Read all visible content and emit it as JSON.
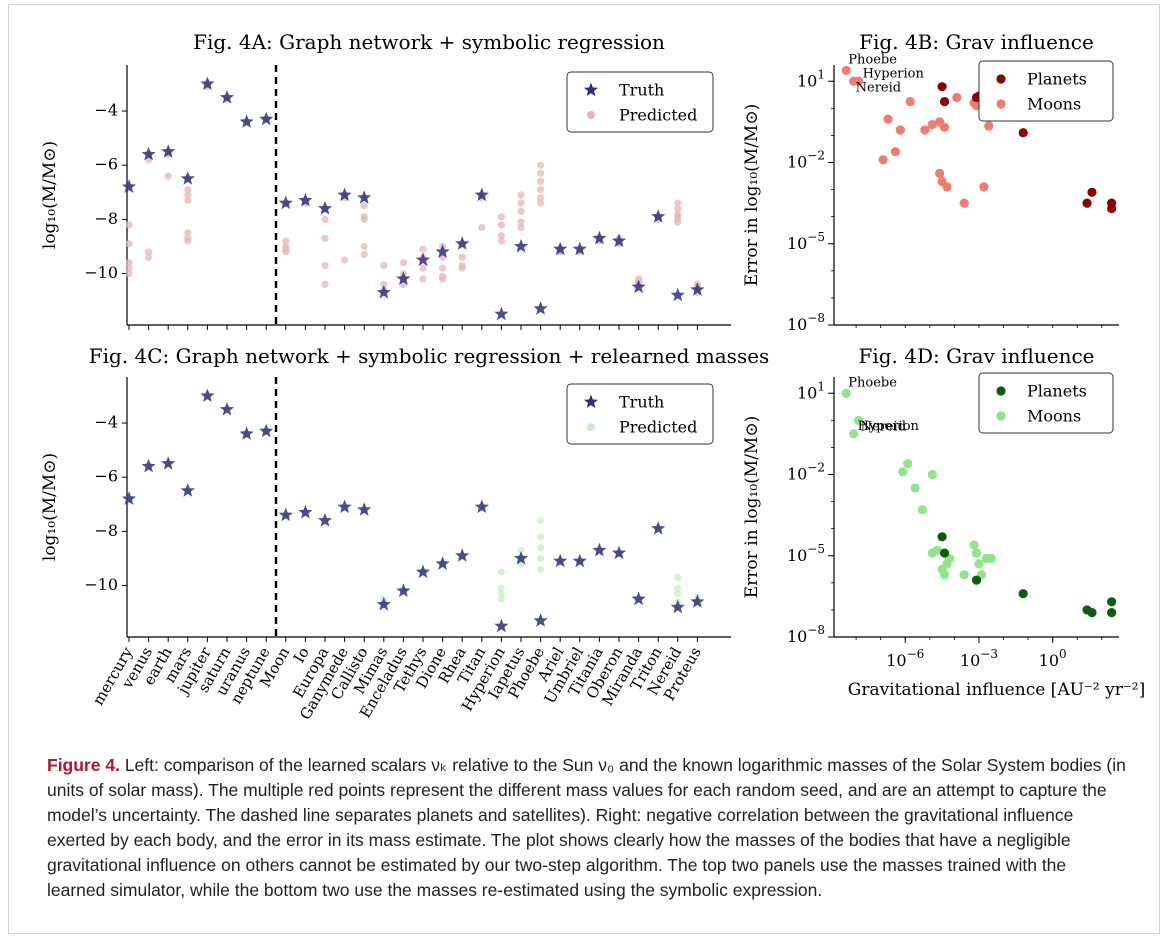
{
  "caption": {
    "label": "Figure 4.",
    "text": "Left: comparison of the learned scalars νₖ relative to the Sun ν₀ and the known logarithmic masses of the Solar System bodies (in units of solar mass). The multiple red points represent the different mass values for each random seed, and are an attempt to capture the model’s uncertainty. The dashed line separates planets and satellites). Right: negative correlation between the gravitational influence exerted by each body, and the error in its mass estimate. The plot shows clearly how the masses of the bodies that have a negligible gravitational influence on others cannot be estimated by our two-step algorithm. The top two panels use the masses trained with the learned simulator, while the bottom two use the masses re-estimated using the symbolic expression."
  },
  "chart_data": [
    {
      "id": "4A",
      "type": "scatter",
      "title": "Fig. 4A: Graph network + symbolic regression",
      "ylabel": "log₁₀(M/M⊙)",
      "ylim": [
        -11.9,
        -2.3
      ],
      "yticks": [
        -4,
        -6,
        -8,
        -10
      ],
      "categories": [
        "mercury",
        "venus",
        "earth",
        "mars",
        "jupiter",
        "saturn",
        "uranus",
        "neptune",
        "Moon",
        "Io",
        "Europa",
        "Ganymede",
        "Callisto",
        "Mimas",
        "Enceladus",
        "Tethys",
        "Dione",
        "Rhea",
        "Titan",
        "Hyperion",
        "Iapetus",
        "Phoebe",
        "Ariel",
        "Umbriel",
        "Titania",
        "Oberon",
        "Miranda",
        "Triton",
        "Nereid",
        "Proteus"
      ],
      "divider_after": 8,
      "colors": {
        "truth": "#2c2f80",
        "predicted": "#e8b4b8"
      },
      "legend": {
        "position": "top-right",
        "truth": "Truth",
        "predicted": "Predicted"
      },
      "truth": [
        -6.8,
        -5.6,
        -5.5,
        -6.5,
        -3.0,
        -3.5,
        -4.4,
        -4.3,
        -7.4,
        -7.3,
        -7.6,
        -7.1,
        -7.2,
        -10.7,
        -10.2,
        -9.5,
        -9.2,
        -8.9,
        -7.1,
        -11.5,
        -9.0,
        -11.3,
        -9.1,
        -9.1,
        -8.7,
        -8.8,
        -10.5,
        -7.9,
        -10.8,
        -10.6
      ],
      "predicted": [
        [
          -6.8,
          -8.2,
          -8.9,
          -9.6,
          -9.8,
          -10.0
        ],
        [
          -5.6,
          -5.8,
          -9.2,
          -9.4
        ],
        [
          -5.5,
          -5.6,
          -6.4
        ],
        [
          -6.5,
          -6.9,
          -7.1,
          -7.3,
          -8.5,
          -8.7,
          -8.8
        ],
        [
          -3.0,
          -3.1
        ],
        [
          -3.5
        ],
        [
          -4.4
        ],
        [
          -4.3
        ],
        [
          -7.4,
          -8.8,
          -9.0,
          -9.1,
          -9.2
        ],
        [
          -7.3,
          -7.4
        ],
        [
          -7.6,
          -8.0,
          -8.7,
          -9.7,
          -10.4
        ],
        [
          -7.1,
          -7.2,
          -9.5
        ],
        [
          -7.2,
          -7.5,
          -7.9,
          -8.0,
          -9.0,
          -9.3
        ],
        [
          -9.7,
          -10.4,
          -10.6
        ],
        [
          -9.6,
          -10.0,
          -10.2,
          -10.4
        ],
        [
          -9.1,
          -9.4,
          -9.8,
          -10.2
        ],
        [
          -9.0,
          -9.4,
          -9.8,
          -10.1,
          -10.2
        ],
        [
          -8.9,
          -9.4,
          -9.7,
          -9.8
        ],
        [
          -7.1,
          -7.2,
          -8.3
        ],
        [
          -7.9,
          -8.2,
          -8.6,
          -8.8
        ],
        [
          -7.1,
          -7.4,
          -7.7,
          -8.1,
          -8.3
        ],
        [
          -6.0,
          -6.3,
          -6.6,
          -6.9,
          -7.2,
          -7.4
        ],
        [
          -9.1,
          -9.2
        ],
        [
          -9.1,
          -9.2
        ],
        [
          -8.7,
          -8.8
        ],
        [
          -8.7,
          -8.9
        ],
        [
          -10.2,
          -10.3,
          -10.4
        ],
        [
          -7.9,
          -8.0
        ],
        [
          -7.4,
          -7.6,
          -7.8,
          -7.9,
          -8.0,
          -8.1
        ],
        [
          -10.4,
          -10.5,
          -10.7
        ]
      ]
    },
    {
      "id": "4B",
      "type": "scatter",
      "title": "Fig. 4B: Grav influence",
      "ylabel": "Error in log₁₀(M/M⊙)",
      "yscale": "log",
      "ylim_exp": [
        -8,
        1.6
      ],
      "yticks_exp": [
        1,
        -2,
        -5,
        -8
      ],
      "xlim_exp": [
        -8.9,
        2.7
      ],
      "colors": {
        "planets": "#8b0000",
        "moons": "#f47a6e"
      },
      "legend": {
        "position": "top-right",
        "planets": "Planets",
        "moons": "Moons"
      },
      "annotations": [
        "Phoebe",
        "Hyperion",
        "Nereid"
      ],
      "planets": [
        [
          -4.5,
          0.8
        ],
        [
          -4.4,
          0.25
        ],
        [
          -3.1,
          0.4
        ],
        [
          -3.0,
          0.45
        ],
        [
          -1.2,
          -0.9
        ],
        [
          1.4,
          -3.5
        ],
        [
          1.6,
          -3.1
        ],
        [
          2.4,
          -3.5
        ],
        [
          2.4,
          -3.7
        ]
      ],
      "moons": [
        [
          -8.4,
          1.4
        ],
        [
          -8.1,
          1.0
        ],
        [
          -7.9,
          1.0
        ],
        [
          -6.9,
          -1.9
        ],
        [
          -6.7,
          -0.4
        ],
        [
          -6.4,
          -1.6
        ],
        [
          -6.2,
          -0.8
        ],
        [
          -5.8,
          0.25
        ],
        [
          -5.2,
          -0.8
        ],
        [
          -4.9,
          -0.6
        ],
        [
          -4.6,
          -0.5
        ],
        [
          -4.4,
          -0.7
        ],
        [
          -4.6,
          -2.4
        ],
        [
          -4.5,
          -2.7
        ],
        [
          -4.3,
          -2.9
        ],
        [
          -3.9,
          0.4
        ],
        [
          -3.6,
          -3.5
        ],
        [
          -3.2,
          0.2
        ],
        [
          -3.1,
          0.1
        ],
        [
          -2.8,
          -2.9
        ],
        [
          -2.6,
          -0.65
        ]
      ]
    },
    {
      "id": "4C",
      "type": "scatter",
      "title": "Fig. 4C: Graph network + symbolic regression + relearned masses",
      "ylabel": "log₁₀(M/M⊙)",
      "ylim": [
        -11.9,
        -2.3
      ],
      "yticks": [
        -4,
        -6,
        -8,
        -10
      ],
      "divider_after": 8,
      "colors": {
        "truth": "#2c2f80",
        "predicted": "#c9ecc6"
      },
      "legend": {
        "position": "top-right",
        "truth": "Truth",
        "predicted": "Predicted"
      },
      "predicted": [
        [
          -6.8
        ],
        [
          -5.6
        ],
        [
          -5.5
        ],
        [
          -6.5
        ],
        [
          -3.0
        ],
        [
          -3.5
        ],
        [
          -4.4
        ],
        [
          -4.3
        ],
        [
          -7.4
        ],
        [
          -7.3
        ],
        [
          -7.6
        ],
        [
          -7.1
        ],
        [
          -7.2
        ],
        [
          -10.5,
          -10.6
        ],
        [
          -10.2
        ],
        [
          -9.5
        ],
        [
          -9.2
        ],
        [
          -8.9
        ],
        [
          -7.1
        ],
        [
          -9.5,
          -10.1,
          -10.3,
          -10.5
        ],
        [
          -8.7,
          -9.0,
          -9.1,
          -9.2
        ],
        [
          -7.6,
          -8.2,
          -8.6,
          -9.0,
          -9.4
        ],
        [
          -9.1
        ],
        [
          -9.1
        ],
        [
          -8.7
        ],
        [
          -8.8
        ],
        [
          -10.5
        ],
        [
          -7.9
        ],
        [
          -9.7,
          -10.1,
          -10.3,
          -10.6,
          -10.8
        ],
        [
          -10.4,
          -10.6
        ]
      ]
    },
    {
      "id": "4D",
      "type": "scatter",
      "title": "Fig. 4D: Grav influence",
      "ylabel": "Error in log₁₀(M/M⊙)",
      "xlabel": "Gravitational influence [AU⁻² yr⁻²]",
      "yscale": "log",
      "xscale": "log",
      "ylim_exp": [
        -8,
        1.6
      ],
      "yticks_exp": [
        1,
        -2,
        -5,
        -8
      ],
      "xlim_exp": [
        -8.9,
        2.7
      ],
      "xticks_exp": [
        -6,
        -3,
        0
      ],
      "colors": {
        "planets": "#0b5d0b",
        "moons": "#8ee68a"
      },
      "legend": {
        "position": "top-right",
        "planets": "Planets",
        "moons": "Moons"
      },
      "annotations": [
        "Phoebe",
        "Hyperion",
        "Nereid"
      ],
      "planets": [
        [
          -4.5,
          -4.3
        ],
        [
          -4.4,
          -4.9
        ],
        [
          -3.1,
          -5.9
        ],
        [
          -1.2,
          -6.4
        ],
        [
          1.4,
          -7.0
        ],
        [
          1.6,
          -7.1
        ],
        [
          2.4,
          -6.7
        ],
        [
          2.4,
          -7.1
        ]
      ],
      "moons": [
        [
          -8.4,
          1.0
        ],
        [
          -7.9,
          0.0
        ],
        [
          -8.1,
          -0.5
        ],
        [
          -6.1,
          -1.9
        ],
        [
          -5.9,
          -1.6
        ],
        [
          -5.6,
          -2.5
        ],
        [
          -5.3,
          -3.3
        ],
        [
          -4.9,
          -2.0
        ],
        [
          -4.9,
          -4.9
        ],
        [
          -4.7,
          -4.8
        ],
        [
          -4.5,
          -5.5
        ],
        [
          -4.4,
          -5.7
        ],
        [
          -4.3,
          -5.3
        ],
        [
          -4.2,
          -5.1
        ],
        [
          -3.6,
          -5.7
        ],
        [
          -3.2,
          -4.6
        ],
        [
          -3.1,
          -4.9
        ],
        [
          -3.0,
          -5.3
        ],
        [
          -2.9,
          -5.7
        ],
        [
          -2.7,
          -5.1
        ],
        [
          -2.5,
          -5.1
        ]
      ]
    }
  ]
}
